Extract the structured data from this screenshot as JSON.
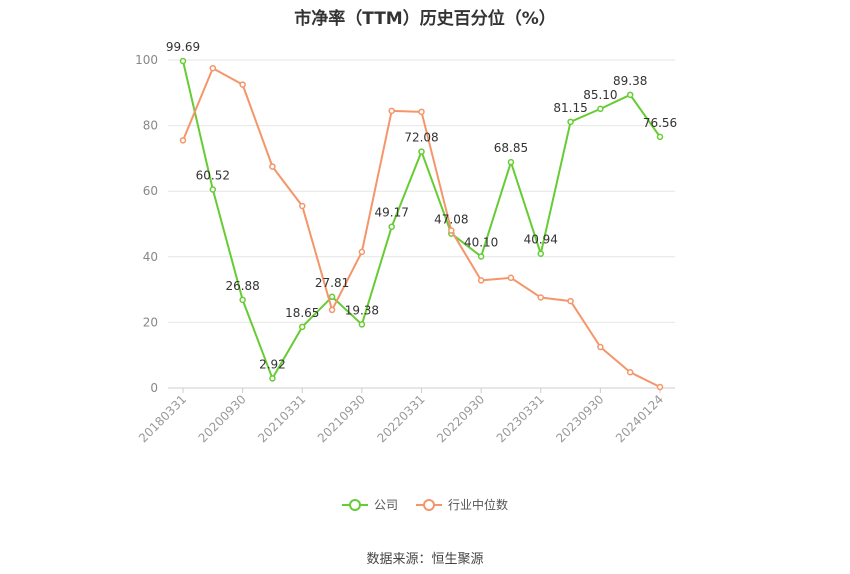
{
  "chart_data": {
    "type": "line",
    "title": "市净率（TTM）历史百分位（%）",
    "source": "数据来源：恒生聚源",
    "ylim": [
      0,
      100
    ],
    "yticks": [
      0,
      20,
      40,
      60,
      80,
      100
    ],
    "categories": [
      "20180331",
      "",
      "20200930",
      "",
      "20210331",
      "",
      "20210930",
      "",
      "20220331",
      "",
      "20220930",
      "",
      "20230331",
      "",
      "20230930",
      "",
      "20240124"
    ],
    "x_tick_labels": [
      "20180331",
      "20200930",
      "20210331",
      "20210930",
      "20220331",
      "20220930",
      "20230331",
      "20230930",
      "20240124"
    ],
    "series": [
      {
        "name": "公司",
        "color": "#66cc33",
        "values": [
          99.69,
          60.52,
          26.88,
          2.92,
          18.65,
          27.81,
          19.38,
          49.17,
          72.08,
          47.08,
          40.1,
          68.85,
          40.94,
          81.15,
          85.1,
          89.38,
          76.56
        ],
        "labels": [
          "99.69",
          "60.52",
          "26.88",
          "2.92",
          "18.65",
          "27.81",
          "19.38",
          "49.17",
          "72.08",
          "47.08",
          "40.10",
          "68.85",
          "40.94",
          "81.15",
          "85.10",
          "89.38",
          "76.56"
        ]
      },
      {
        "name": "行业中位数",
        "color": "#f4956a",
        "values": [
          75.5,
          97.5,
          92.5,
          67.5,
          55.5,
          23.8,
          41.5,
          84.5,
          84.2,
          48.0,
          32.8,
          33.6,
          27.6,
          26.5,
          12.5,
          4.8,
          0.3
        ]
      }
    ],
    "grid": true,
    "legend_position": "bottom"
  }
}
